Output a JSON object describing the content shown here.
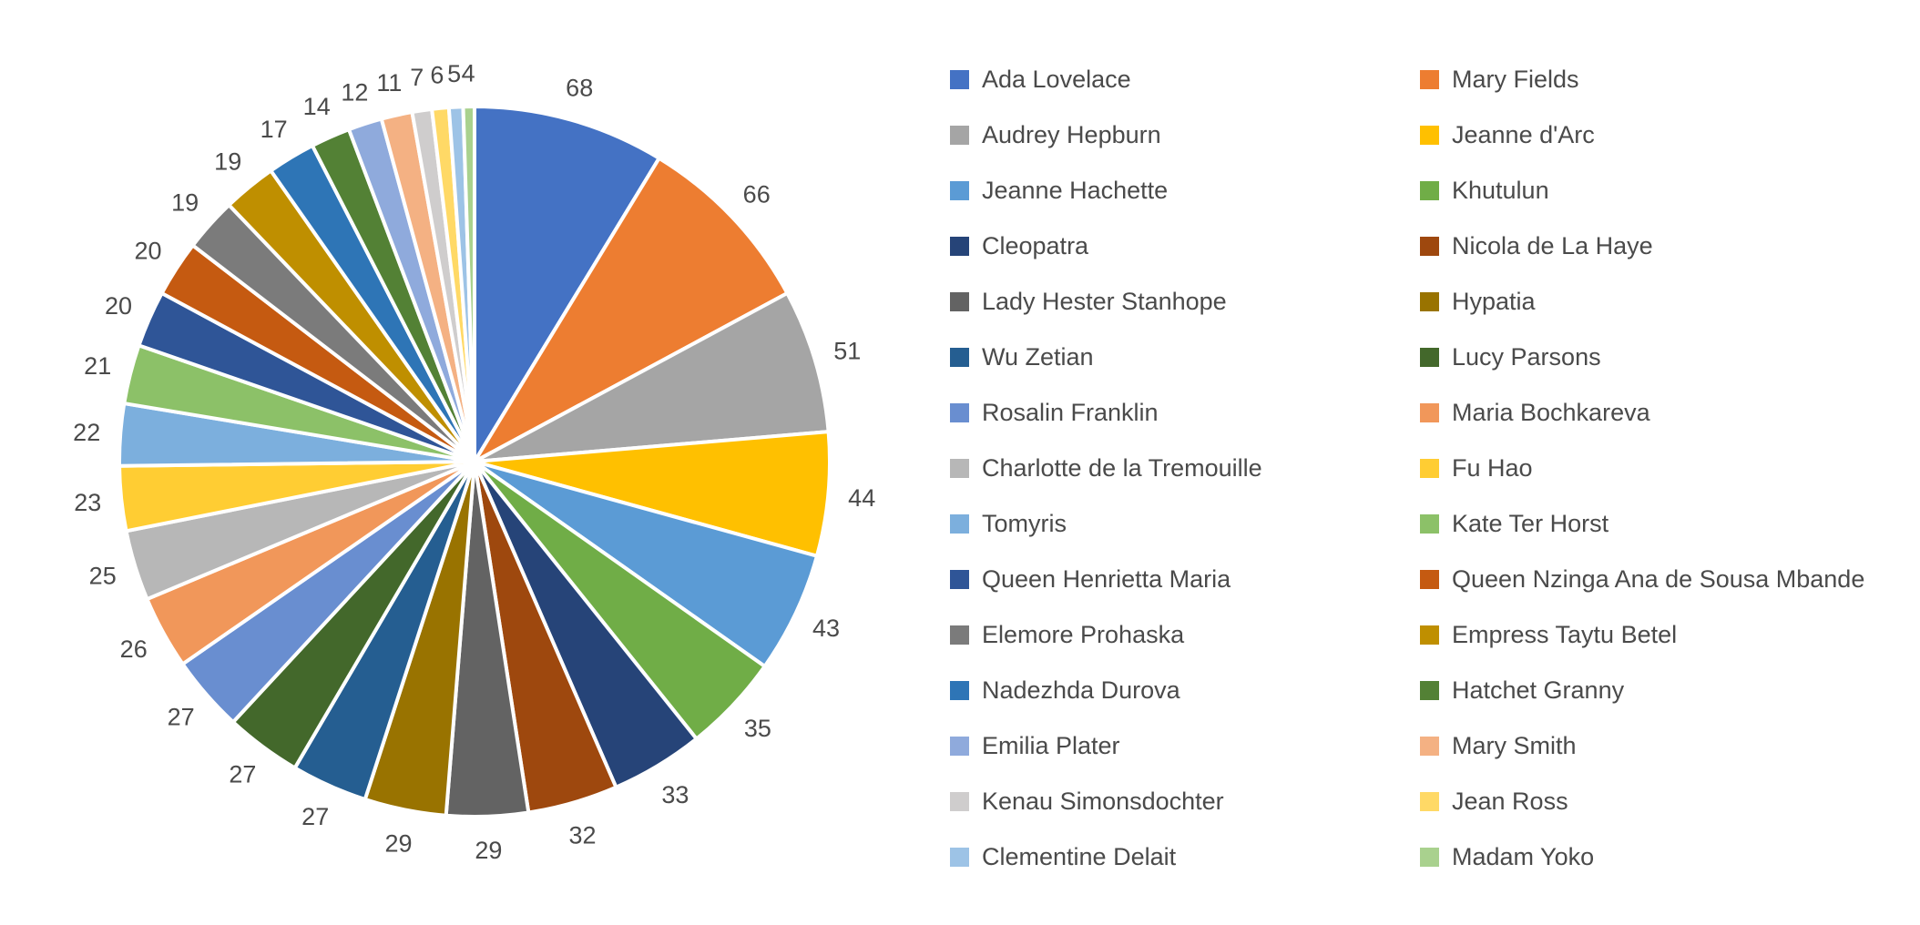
{
  "chart_data": {
    "type": "pie",
    "title": "",
    "total": 782,
    "data_labels": "value",
    "legend_position": "right",
    "legend_columns": 2,
    "start_angle_deg": 0,
    "points": [
      {
        "label": "Ada Lovelace",
        "value": 68,
        "color": "#4472C4"
      },
      {
        "label": "Mary Fields",
        "value": 66,
        "color": "#ED7D31"
      },
      {
        "label": "Audrey Hepburn",
        "value": 51,
        "color": "#A5A5A5"
      },
      {
        "label": "Jeanne d'Arc",
        "value": 44,
        "color": "#FFC000"
      },
      {
        "label": "Jeanne Hachette",
        "value": 43,
        "color": "#5B9BD5"
      },
      {
        "label": "Khutulun",
        "value": 35,
        "color": "#70AD47"
      },
      {
        "label": "Cleopatra",
        "value": 33,
        "color": "#264478"
      },
      {
        "label": "Nicola de La Haye",
        "value": 32,
        "color": "#9E480E"
      },
      {
        "label": "Lady Hester Stanhope",
        "value": 29,
        "color": "#636363"
      },
      {
        "label": "Hypatia",
        "value": 29,
        "color": "#997300"
      },
      {
        "label": "Wu Zetian",
        "value": 27,
        "color": "#255E91"
      },
      {
        "label": "Lucy Parsons",
        "value": 27,
        "color": "#43682B"
      },
      {
        "label": "Rosalin Franklin",
        "value": 27,
        "color": "#698ED0"
      },
      {
        "label": "Maria Bochkareva",
        "value": 26,
        "color": "#F1975A"
      },
      {
        "label": "Charlotte de la Tremouille",
        "value": 25,
        "color": "#B7B7B7"
      },
      {
        "label": "Fu Hao",
        "value": 23,
        "color": "#FFCD33"
      },
      {
        "label": "Tomyris",
        "value": 22,
        "color": "#7CAFDD"
      },
      {
        "label": "Kate Ter Horst",
        "value": 21,
        "color": "#8CC168"
      },
      {
        "label": "Queen Henrietta Maria",
        "value": 20,
        "color": "#2F5597"
      },
      {
        "label": "Queen Nzinga Ana de Sousa Mbande",
        "value": 20,
        "color": "#C55A11"
      },
      {
        "label": "Elemore Prohaska",
        "value": 19,
        "color": "#7B7B7B"
      },
      {
        "label": "Empress Taytu Betel",
        "value": 19,
        "color": "#BF8F00"
      },
      {
        "label": "Nadezhda Durova",
        "value": 17,
        "color": "#2E75B6"
      },
      {
        "label": "Hatchet Granny",
        "value": 14,
        "color": "#538135"
      },
      {
        "label": "Emilia Plater",
        "value": 12,
        "color": "#8FAADC"
      },
      {
        "label": "Mary Smith",
        "value": 11,
        "color": "#F4B183"
      },
      {
        "label": "Kenau Simonsdochter",
        "value": 7,
        "color": "#CFCDCD"
      },
      {
        "label": "Jean Ross",
        "value": 6,
        "color": "#FFD966"
      },
      {
        "label": "Clementine Delait",
        "value": 5,
        "color": "#9DC3E6"
      },
      {
        "label": "Madam Yoko",
        "value": 4,
        "color": "#A9D18E"
      }
    ]
  },
  "style": {
    "background": "#ffffff",
    "slice_border_color": "#ffffff",
    "text_color": "#4a4a4a"
  }
}
